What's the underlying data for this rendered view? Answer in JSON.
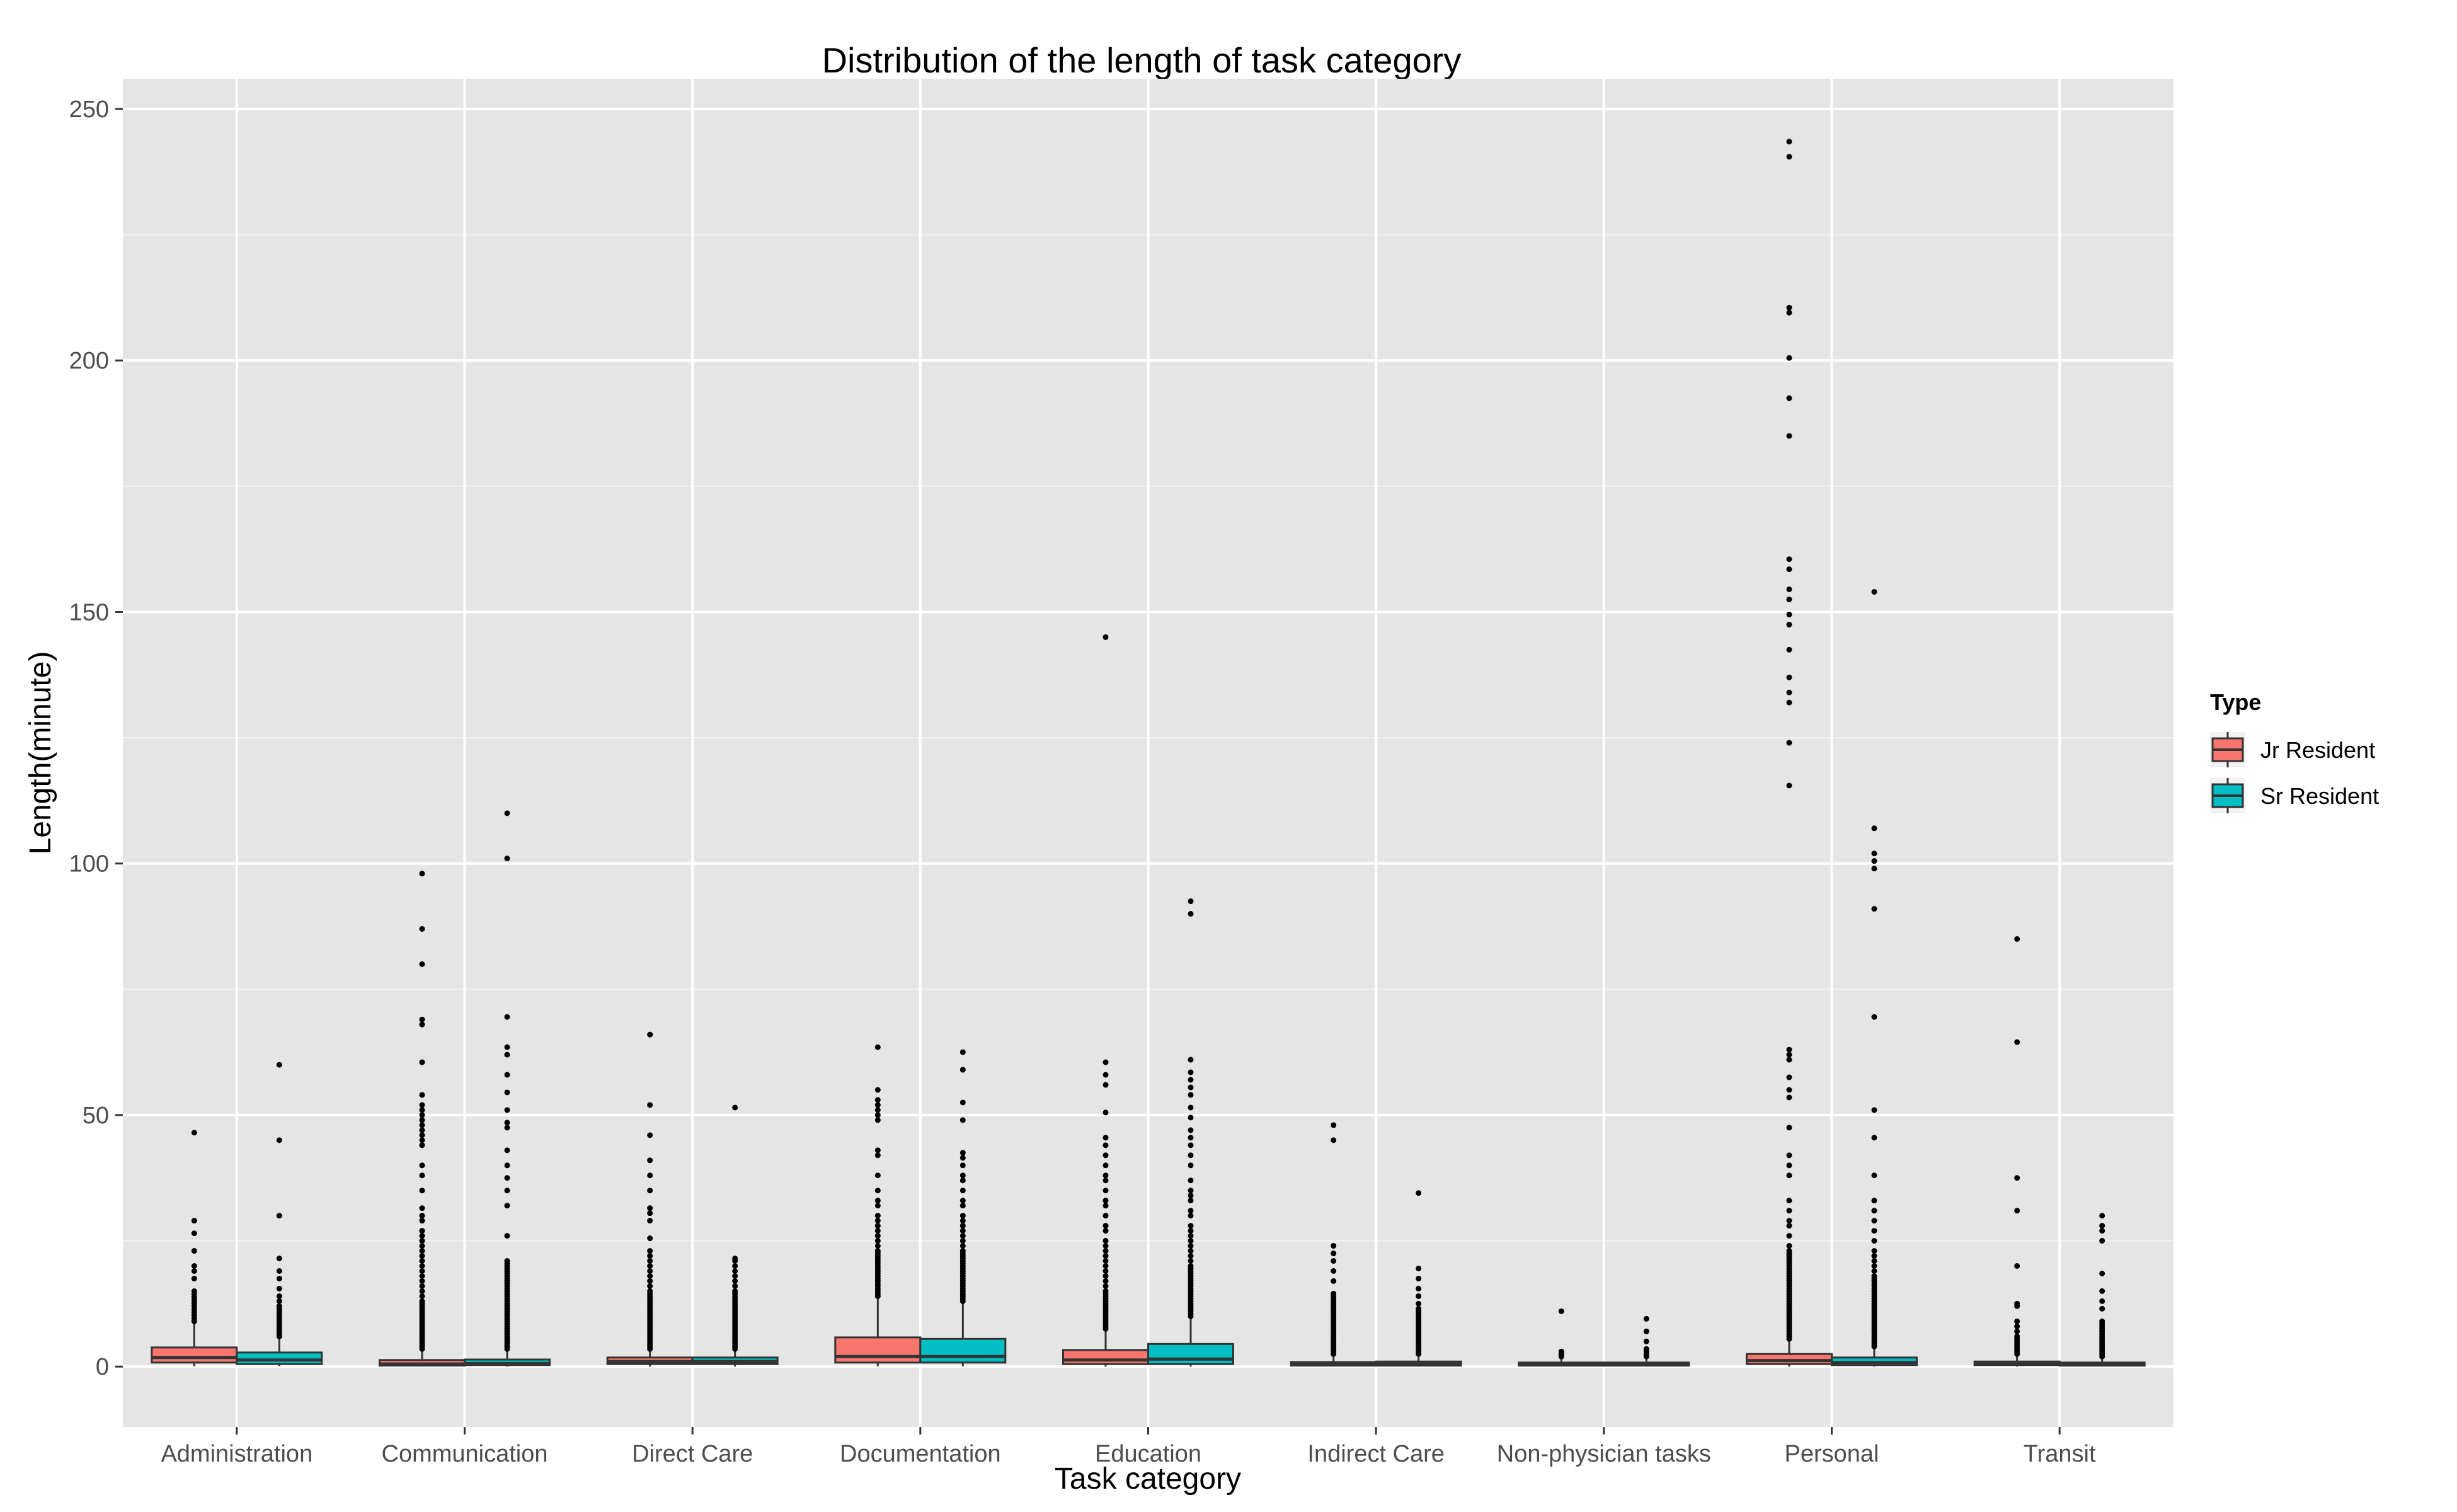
{
  "chart_data": {
    "type": "boxplot",
    "title": "Distribution of the length of task category",
    "xlabel": "Task category",
    "ylabel": "Length(minute)",
    "ylim": [
      -12,
      256
    ],
    "yticks": [
      0,
      50,
      100,
      150,
      200,
      250
    ],
    "grid": true,
    "legend": {
      "title": "Type",
      "placement": "right",
      "entries": [
        {
          "name": "Jr Resident",
          "color": "#F8766D"
        },
        {
          "name": "Sr Resident",
          "color": "#00BFC4"
        }
      ]
    },
    "categories": [
      "Administration",
      "Communication",
      "Direct Care",
      "Documentation",
      "Education",
      "Indirect Care",
      "Non-physician tasks",
      "Personal",
      "Transit"
    ],
    "series": [
      {
        "name": "Jr Resident",
        "color": "#F8766D",
        "boxes": [
          {
            "q1": 0.8,
            "median": 1.8,
            "q3": 3.8,
            "whisker_low": 0.1,
            "whisker_high": 8.5,
            "outliers": [
              9,
              9.6,
              10.2,
              10.8,
              11.4,
              12,
              12.6,
              13.2,
              13.8,
              14.4,
              15,
              17.5,
              19,
              20,
              23,
              26.5,
              29,
              46.5
            ]
          },
          {
            "q1": 0.2,
            "median": 0.5,
            "q3": 1.3,
            "whisker_low": 0,
            "whisker_high": 3,
            "outliers": [
              3.5,
              4,
              4.5,
              5,
              5.5,
              6,
              6.5,
              7,
              7.5,
              8,
              8.5,
              9,
              9.5,
              10,
              10.5,
              11,
              11.5,
              12,
              12.5,
              13,
              14,
              15,
              16,
              17,
              18,
              19,
              20,
              21,
              22,
              23,
              24,
              25,
              26,
              27,
              29,
              30,
              31.5,
              35,
              38,
              40,
              44,
              45,
              46,
              47,
              48,
              49,
              50,
              51,
              52,
              54,
              60.5,
              68,
              69,
              80,
              87,
              98
            ]
          },
          {
            "q1": 0.5,
            "median": 1,
            "q3": 1.8,
            "whisker_low": 0,
            "whisker_high": 3,
            "outliers": [
              3.5,
              4,
              4.5,
              5,
              5.5,
              6,
              6.5,
              7,
              7.5,
              8,
              8.5,
              9,
              9.5,
              10,
              10.5,
              11,
              11.5,
              12,
              12.5,
              13,
              13.5,
              14,
              14.5,
              15,
              16,
              17,
              18,
              19,
              20,
              21,
              22,
              23,
              25.5,
              29,
              30.5,
              31.5,
              35,
              38,
              41,
              46,
              52,
              66
            ]
          },
          {
            "q1": 0.8,
            "median": 2,
            "q3": 5.8,
            "whisker_low": 0.1,
            "whisker_high": 13.5,
            "outliers": [
              14,
              14.5,
              15,
              15.5,
              16,
              16.5,
              17,
              17.5,
              18,
              18.5,
              19,
              19.5,
              20,
              20.5,
              21,
              21.5,
              22,
              22.5,
              23,
              24,
              25,
              26,
              27,
              28,
              29,
              30,
              32,
              33,
              35,
              38,
              42,
              43,
              49,
              50,
              51,
              52,
              53,
              55,
              63.5
            ]
          },
          {
            "q1": 0.5,
            "median": 1.3,
            "q3": 3.3,
            "whisker_low": 0,
            "whisker_high": 7,
            "outliers": [
              7.5,
              8,
              8.5,
              9,
              9.5,
              10,
              10.5,
              11,
              11.5,
              12,
              12.5,
              13,
              13.5,
              14,
              14.5,
              15,
              16,
              17,
              18,
              19,
              20,
              21,
              22,
              23,
              24,
              25,
              27,
              28,
              30,
              32,
              33,
              35,
              37,
              38,
              40,
              42,
              44,
              45.5,
              50.5,
              56,
              58,
              60.5,
              145
            ]
          },
          {
            "q1": 0.2,
            "median": 0.4,
            "q3": 0.9,
            "whisker_low": 0,
            "whisker_high": 2,
            "outliers": [
              2.5,
              3,
              3.5,
              4,
              4.5,
              5,
              5.5,
              6,
              6.5,
              7,
              7.5,
              8,
              8.5,
              9,
              9.5,
              10,
              10.5,
              11,
              11.5,
              12,
              12.5,
              13,
              13.5,
              14,
              14.5,
              17,
              19,
              21,
              22.5,
              24,
              45,
              48
            ]
          },
          {
            "q1": 0.2,
            "median": 0.4,
            "q3": 0.8,
            "whisker_low": 0,
            "whisker_high": 1.6,
            "outliers": [
              2,
              2.5,
              3,
              11
            ]
          },
          {
            "q1": 0.5,
            "median": 1.2,
            "q3": 2.5,
            "whisker_low": 0,
            "whisker_high": 5,
            "outliers": [
              5.5,
              6,
              6.5,
              7,
              7.5,
              8,
              8.5,
              9,
              9.5,
              10,
              10.5,
              11,
              11.5,
              12,
              12.5,
              13,
              13.5,
              14,
              14.5,
              15,
              15.5,
              16,
              16.5,
              17,
              17.5,
              18,
              18.5,
              19,
              19.5,
              20,
              20.5,
              21,
              21.5,
              22,
              22.5,
              23,
              24,
              26,
              28,
              29,
              31,
              33,
              38,
              40,
              42,
              47.5,
              53.5,
              55,
              57.5,
              61,
              62,
              63,
              115.5,
              124,
              132,
              134,
              137,
              142.5,
              147.5,
              149.5,
              152.5,
              154.5,
              158.5,
              160.5,
              185,
              192.5,
              200.5,
              209.5,
              210.5,
              240.5,
              243.5
            ]
          },
          {
            "q1": 0.3,
            "median": 0.5,
            "q3": 1,
            "whisker_low": 0,
            "whisker_high": 2,
            "outliers": [
              2.5,
              3,
              3.5,
              4,
              4.5,
              5,
              5.5,
              6,
              7,
              8,
              9,
              12,
              12.5,
              20,
              31,
              37.5,
              64.5,
              85
            ]
          }
        ]
      },
      {
        "name": "Sr Resident",
        "color": "#00BFC4",
        "boxes": [
          {
            "q1": 0.5,
            "median": 1.3,
            "q3": 2.8,
            "whisker_low": 0.1,
            "whisker_high": 5.5,
            "outliers": [
              6,
              6.5,
              7,
              7.5,
              8,
              8.5,
              9,
              9.5,
              10,
              10.5,
              11,
              11.5,
              12,
              13,
              14,
              15.5,
              17.5,
              19,
              21.5,
              30,
              45,
              60
            ]
          },
          {
            "q1": 0.3,
            "median": 0.6,
            "q3": 1.4,
            "whisker_low": 0,
            "whisker_high": 3,
            "outliers": [
              3.5,
              4,
              4.5,
              5,
              5.5,
              6,
              6.5,
              7,
              7.5,
              8,
              8.5,
              9,
              9.5,
              10,
              10.5,
              11,
              11.5,
              12,
              12.5,
              13,
              13.5,
              14,
              14.5,
              15,
              15.5,
              16,
              16.5,
              17,
              17.5,
              18,
              18.5,
              19,
              19.5,
              20,
              20.5,
              21,
              26,
              32,
              35,
              37.5,
              40,
              43,
              47.5,
              48.5,
              51,
              54.5,
              58,
              62,
              63.5,
              69.5,
              101,
              110
            ]
          },
          {
            "q1": 0.5,
            "median": 1,
            "q3": 1.8,
            "whisker_low": 0,
            "whisker_high": 3,
            "outliers": [
              3.5,
              4,
              4.5,
              5,
              5.5,
              6,
              6.5,
              7,
              7.5,
              8,
              8.5,
              9,
              9.5,
              10,
              10.5,
              11,
              11.5,
              12,
              12.5,
              13,
              13.5,
              14,
              14.5,
              15,
              16,
              17,
              18,
              19,
              20,
              21,
              21.5,
              51.5
            ]
          },
          {
            "q1": 0.8,
            "median": 2,
            "q3": 5.5,
            "whisker_low": 0.1,
            "whisker_high": 12.5,
            "outliers": [
              13,
              13.5,
              14,
              14.5,
              15,
              15.5,
              16,
              16.5,
              17,
              17.5,
              18,
              18.5,
              19,
              19.5,
              20,
              20.5,
              21,
              21.5,
              22,
              22.5,
              23,
              24,
              25,
              26,
              27,
              28,
              29,
              30,
              32,
              33,
              35,
              37,
              38,
              40,
              41.5,
              42.5,
              49,
              52.5,
              59,
              62.5
            ]
          },
          {
            "q1": 0.5,
            "median": 1.5,
            "q3": 4.5,
            "whisker_low": 0,
            "whisker_high": 9.5,
            "outliers": [
              10,
              10.5,
              11,
              11.5,
              12,
              12.5,
              13,
              13.5,
              14,
              14.5,
              15,
              15.5,
              16,
              16.5,
              17,
              17.5,
              18,
              18.5,
              19,
              19.5,
              20,
              21,
              22,
              23,
              24,
              25,
              26,
              27,
              28,
              30,
              31,
              33,
              34,
              35,
              37,
              40,
              42,
              44,
              45.5,
              47,
              49.5,
              51.5,
              54,
              55.5,
              57,
              58.5,
              61,
              90,
              92.5
            ]
          },
          {
            "q1": 0.2,
            "median": 0.5,
            "q3": 1,
            "whisker_low": 0,
            "whisker_high": 2,
            "outliers": [
              2.5,
              3,
              3.5,
              4,
              4.5,
              5,
              5.5,
              6,
              6.5,
              7,
              7.5,
              8,
              8.5,
              9,
              9.5,
              10,
              10.5,
              11,
              11.5,
              12.5,
              14,
              15.5,
              17.5,
              19.5,
              34.5
            ]
          },
          {
            "q1": 0.2,
            "median": 0.4,
            "q3": 0.8,
            "whisker_low": 0,
            "whisker_high": 1.6,
            "outliers": [
              2,
              2.5,
              3,
              3.5,
              5,
              7,
              9.5
            ]
          },
          {
            "q1": 0.3,
            "median": 0.8,
            "q3": 1.8,
            "whisker_low": 0,
            "whisker_high": 3.5,
            "outliers": [
              4,
              4.5,
              5,
              5.5,
              6,
              6.5,
              7,
              7.5,
              8,
              8.5,
              9,
              9.5,
              10,
              10.5,
              11,
              11.5,
              12,
              12.5,
              13,
              13.5,
              14,
              14.5,
              15,
              15.5,
              16,
              16.5,
              17,
              17.5,
              18,
              19,
              20,
              21,
              22,
              23,
              25,
              27,
              29,
              31,
              33,
              38,
              45.5,
              51,
              69.5,
              91,
              99,
              100.5,
              102,
              107,
              154
            ]
          },
          {
            "q1": 0.2,
            "median": 0.4,
            "q3": 0.8,
            "whisker_low": 0,
            "whisker_high": 1.6,
            "outliers": [
              2,
              2.5,
              3,
              3.5,
              4,
              4.5,
              5,
              5.5,
              6,
              6.5,
              7,
              7.5,
              8,
              8.5,
              9,
              11.5,
              13,
              15,
              18.5,
              25,
              27,
              28,
              30
            ]
          }
        ]
      }
    ]
  }
}
